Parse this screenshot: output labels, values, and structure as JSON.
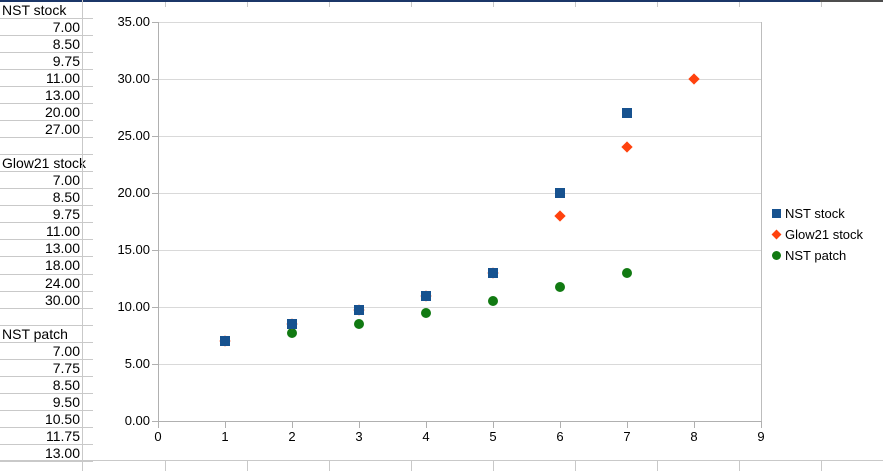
{
  "sheet": {
    "column_a": [
      "NST stock",
      "7.00",
      "8.50",
      "9.75",
      "11.00",
      "13.00",
      "20.00",
      "27.00",
      "",
      "Glow21 stock",
      "7.00",
      "8.50",
      "9.75",
      "11.00",
      "13.00",
      "18.00",
      "24.00",
      "30.00",
      "",
      "NST patch",
      "7.00",
      "7.75",
      "8.50",
      "9.50",
      "10.50",
      "11.75",
      "13.00",
      ""
    ]
  },
  "chart_data": {
    "type": "scatter",
    "title": "",
    "xlabel": "",
    "ylabel": "",
    "xlim": [
      0,
      9
    ],
    "ylim": [
      0,
      35
    ],
    "x_ticks": [
      "0",
      "1",
      "2",
      "3",
      "4",
      "5",
      "6",
      "7",
      "8",
      "9"
    ],
    "y_ticks": [
      "0.00",
      "5.00",
      "10.00",
      "15.00",
      "20.00",
      "25.00",
      "30.00",
      "35.00"
    ],
    "grid": "horizontal",
    "legend_position": "right",
    "series": [
      {
        "name": "NST stock",
        "marker": "square",
        "color": "#17528F",
        "points": [
          [
            1,
            7
          ],
          [
            2,
            8.5
          ],
          [
            3,
            9.75
          ],
          [
            4,
            11
          ],
          [
            5,
            13
          ],
          [
            6,
            20
          ],
          [
            7,
            27
          ]
        ]
      },
      {
        "name": "Glow21 stock",
        "marker": "diamond",
        "color": "#FF420E",
        "points": [
          [
            1,
            7
          ],
          [
            2,
            8.5
          ],
          [
            3,
            9.75
          ],
          [
            4,
            11
          ],
          [
            5,
            13
          ],
          [
            6,
            18
          ],
          [
            7,
            24
          ],
          [
            8,
            30
          ]
        ]
      },
      {
        "name": "NST patch",
        "marker": "circle",
        "color": "#117A12",
        "points": [
          [
            1,
            7
          ],
          [
            2,
            7.75
          ],
          [
            3,
            8.5
          ],
          [
            4,
            9.5
          ],
          [
            5,
            10.5
          ],
          [
            6,
            11.75
          ],
          [
            7,
            13
          ]
        ]
      }
    ]
  }
}
